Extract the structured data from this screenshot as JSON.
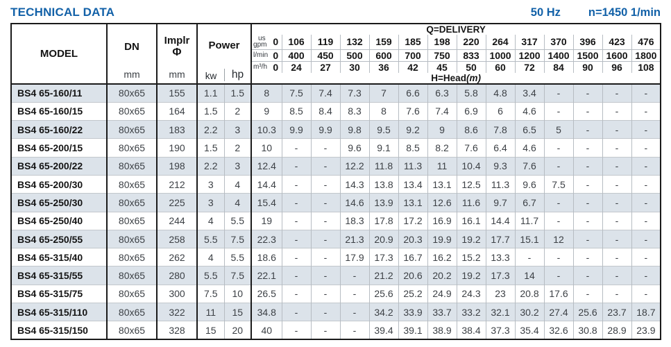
{
  "page": {
    "title": "TECHNICAL DATA",
    "frequency": "50 Hz",
    "speed": "n=1450 1/min",
    "colors": {
      "accent": "#1261a8",
      "row_shade": "#dce3ea",
      "border": "#1a1a1a"
    }
  },
  "table": {
    "headers": {
      "model": "MODEL",
      "dn": "DN",
      "dn_unit": "mm",
      "impeller": "Implr",
      "impeller_phi": "Φ",
      "impeller_unit": "mm",
      "power": "Power",
      "power_kw": "kw",
      "power_hp": "hp",
      "delivery": "Q=DELIVERY",
      "head": "H=Head",
      "head_unit": "(m)",
      "flow_rows": [
        {
          "label_top": "us",
          "label": "gpm",
          "values": [
            "0",
            "106",
            "119",
            "132",
            "159",
            "185",
            "198",
            "220",
            "264",
            "317",
            "370",
            "396",
            "423",
            "476"
          ]
        },
        {
          "label_top": "",
          "label": "l/min",
          "values": [
            "0",
            "400",
            "450",
            "500",
            "600",
            "700",
            "750",
            "833",
            "1000",
            "1200",
            "1400",
            "1500",
            "1600",
            "1800"
          ]
        },
        {
          "label_top": "",
          "label": "m³/h",
          "values": [
            "0",
            "24",
            "27",
            "30",
            "36",
            "42",
            "45",
            "50",
            "60",
            "72",
            "84",
            "90",
            "96",
            "108"
          ]
        }
      ]
    },
    "rows": [
      {
        "model": "BS4 65-160/11",
        "dn": "80x65",
        "impeller": "155",
        "kw": "1.1",
        "hp": "1.5",
        "head": [
          "8",
          "7.5",
          "7.4",
          "7.3",
          "7",
          "6.6",
          "6.3",
          "5.8",
          "4.8",
          "3.4",
          "-",
          "-",
          "-",
          "-"
        ]
      },
      {
        "model": "BS4 65-160/15",
        "dn": "80x65",
        "impeller": "164",
        "kw": "1.5",
        "hp": "2",
        "head": [
          "9",
          "8.5",
          "8.4",
          "8.3",
          "8",
          "7.6",
          "7.4",
          "6.9",
          "6",
          "4.6",
          "-",
          "-",
          "-",
          "-"
        ]
      },
      {
        "model": "BS4 65-160/22",
        "dn": "80x65",
        "impeller": "183",
        "kw": "2.2",
        "hp": "3",
        "head": [
          "10.3",
          "9.9",
          "9.9",
          "9.8",
          "9.5",
          "9.2",
          "9",
          "8.6",
          "7.8",
          "6.5",
          "5",
          "-",
          "-",
          "-"
        ]
      },
      {
        "model": "BS4 65-200/15",
        "dn": "80x65",
        "impeller": "190",
        "kw": "1.5",
        "hp": "2",
        "head": [
          "10",
          "-",
          "-",
          "9.6",
          "9.1",
          "8.5",
          "8.2",
          "7.6",
          "6.4",
          "4.6",
          "-",
          "-",
          "-",
          "-"
        ]
      },
      {
        "model": "BS4 65-200/22",
        "dn": "80x65",
        "impeller": "198",
        "kw": "2.2",
        "hp": "3",
        "head": [
          "12.4",
          "-",
          "-",
          "12.2",
          "11.8",
          "11.3",
          "11",
          "10.4",
          "9.3",
          "7.6",
          "-",
          "-",
          "-",
          "-"
        ]
      },
      {
        "model": "BS4 65-200/30",
        "dn": "80x65",
        "impeller": "212",
        "kw": "3",
        "hp": "4",
        "head": [
          "14.4",
          "-",
          "-",
          "14.3",
          "13.8",
          "13.4",
          "13.1",
          "12.5",
          "11.3",
          "9.6",
          "7.5",
          "-",
          "-",
          "-"
        ]
      },
      {
        "model": "BS4 65-250/30",
        "dn": "80x65",
        "impeller": "225",
        "kw": "3",
        "hp": "4",
        "head": [
          "15.4",
          "-",
          "-",
          "14.6",
          "13.9",
          "13.1",
          "12.6",
          "11.6",
          "9.7",
          "6.7",
          "-",
          "-",
          "-",
          "-"
        ]
      },
      {
        "model": "BS4 65-250/40",
        "dn": "80x65",
        "impeller": "244",
        "kw": "4",
        "hp": "5.5",
        "head": [
          "19",
          "-",
          "-",
          "18.3",
          "17.8",
          "17.2",
          "16.9",
          "16.1",
          "14.4",
          "11.7",
          "-",
          "-",
          "-",
          "-"
        ]
      },
      {
        "model": "BS4 65-250/55",
        "dn": "80x65",
        "impeller": "258",
        "kw": "5.5",
        "hp": "7.5",
        "head": [
          "22.3",
          "-",
          "-",
          "21.3",
          "20.9",
          "20.3",
          "19.9",
          "19.2",
          "17.7",
          "15.1",
          "12",
          "-",
          "-",
          "-"
        ]
      },
      {
        "model": "BS4 65-315/40",
        "dn": "80x65",
        "impeller": "262",
        "kw": "4",
        "hp": "5.5",
        "head": [
          "18.6",
          "-",
          "-",
          "17.9",
          "17.3",
          "16.7",
          "16.2",
          "15.2",
          "13.3",
          "-",
          "-",
          "-",
          "-",
          "-"
        ]
      },
      {
        "model": "BS4 65-315/55",
        "dn": "80x65",
        "impeller": "280",
        "kw": "5.5",
        "hp": "7.5",
        "head": [
          "22.1",
          "-",
          "-",
          "-",
          "21.2",
          "20.6",
          "20.2",
          "19.2",
          "17.3",
          "14",
          "-",
          "-",
          "-",
          "-"
        ]
      },
      {
        "model": "BS4 65-315/75",
        "dn": "80x65",
        "impeller": "300",
        "kw": "7.5",
        "hp": "10",
        "head": [
          "26.5",
          "-",
          "-",
          "-",
          "25.6",
          "25.2",
          "24.9",
          "24.3",
          "23",
          "20.8",
          "17.6",
          "-",
          "-",
          "-"
        ]
      },
      {
        "model": "BS4 65-315/110",
        "dn": "80x65",
        "impeller": "322",
        "kw": "11",
        "hp": "15",
        "head": [
          "34.8",
          "-",
          "-",
          "-",
          "34.2",
          "33.9",
          "33.7",
          "33.2",
          "32.1",
          "30.2",
          "27.4",
          "25.6",
          "23.7",
          "18.7"
        ]
      },
      {
        "model": "BS4 65-315/150",
        "dn": "80x65",
        "impeller": "328",
        "kw": "15",
        "hp": "20",
        "head": [
          "40",
          "-",
          "-",
          "-",
          "39.4",
          "39.1",
          "38.9",
          "38.4",
          "37.3",
          "35.4",
          "32.6",
          "30.8",
          "28.9",
          "23.9"
        ]
      }
    ]
  }
}
